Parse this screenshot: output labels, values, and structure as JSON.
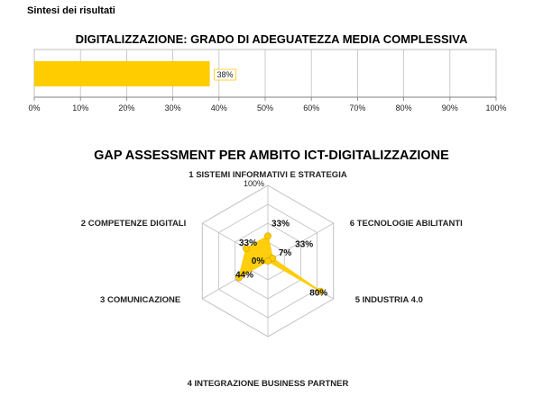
{
  "header": {
    "section_title": "Sintesi dei risultati"
  },
  "colors": {
    "accent": "#FFCC00",
    "grid": "#BFBFBF",
    "axis": "#7F7F7F"
  },
  "chart_data": [
    {
      "type": "bar",
      "orientation": "horizontal",
      "title": "DIGITALIZZAZIONE: GRADO DI ADEGUATEZZA MEDIA COMPLESSIVA",
      "values": [
        38
      ],
      "data_labels": [
        "38%"
      ],
      "xlim": [
        0,
        100
      ],
      "x_ticks": [
        "0%",
        "10%",
        "20%",
        "30%",
        "40%",
        "50%",
        "60%",
        "70%",
        "80%",
        "90%",
        "100%"
      ],
      "grid": true
    },
    {
      "type": "radar",
      "title": "GAP ASSESSMENT PER AMBITO ICT-DIGITALIZZAZIONE",
      "categories": [
        "1 SISTEMI INFORMATIVI E STRATEGIA",
        "6 TECNOLOGIE ABILITANTI",
        "5 INDUSTRIA 4.0",
        "4 INTEGRAZIONE BUSINESS PARTNER",
        "3 COMUNICAZIONE",
        "2 COMPETENZE DIGITALI"
      ],
      "values": [
        33,
        7,
        80,
        0,
        44,
        33
      ],
      "data_labels": [
        "33%",
        "7%",
        "80%",
        "0%",
        "44%",
        "33%"
      ],
      "extra_labels": [
        "33%"
      ],
      "rlim": [
        0,
        100
      ],
      "r_tick_labels": [
        "100%"
      ],
      "grid": true
    }
  ]
}
